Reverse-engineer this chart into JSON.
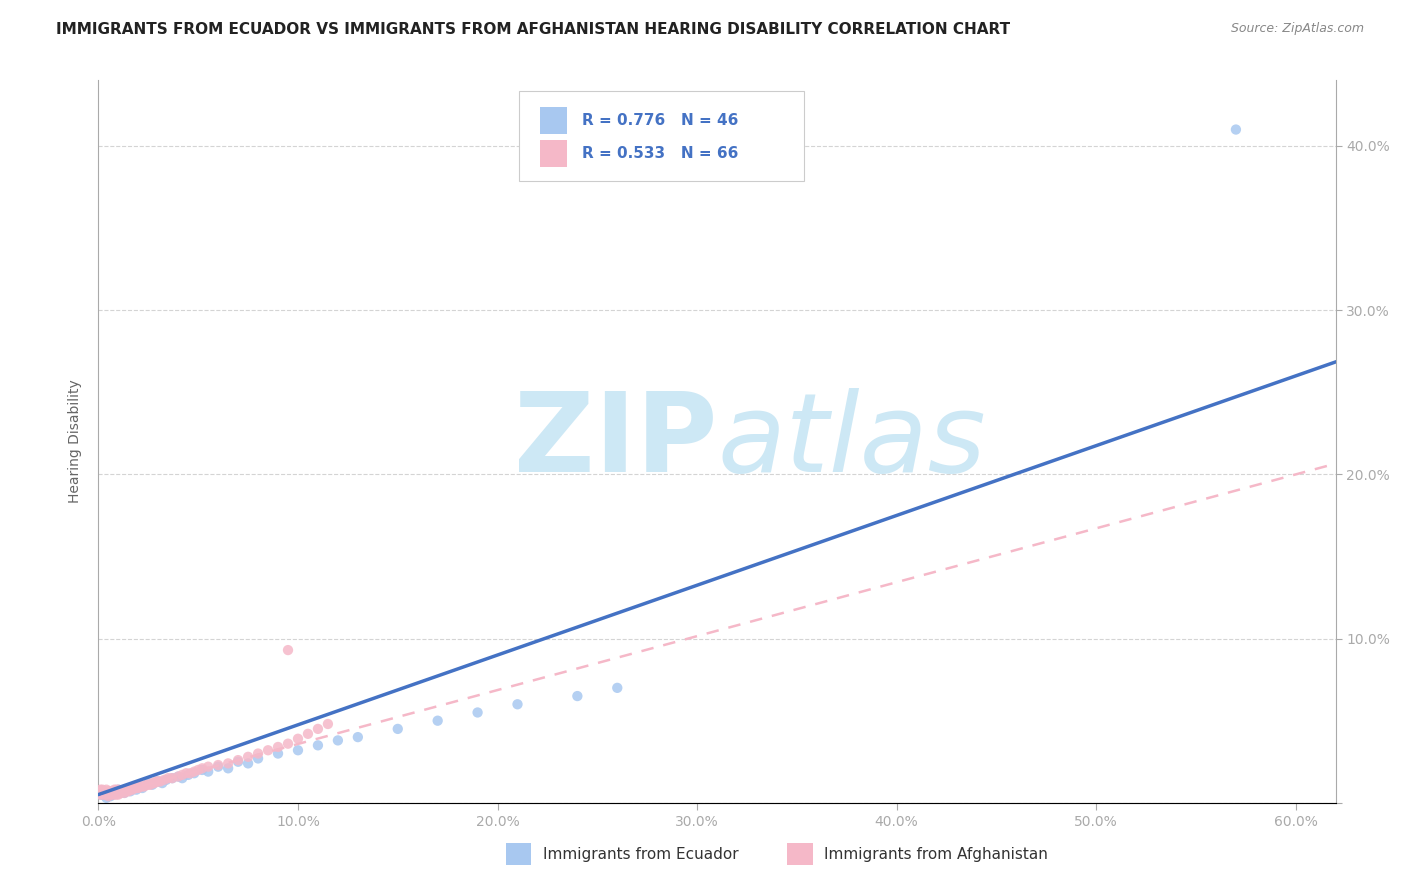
{
  "title": "IMMIGRANTS FROM ECUADOR VS IMMIGRANTS FROM AFGHANISTAN HEARING DISABILITY CORRELATION CHART",
  "source": "Source: ZipAtlas.com",
  "ylabel": "Hearing Disability",
  "xlim": [
    0.0,
    0.62
  ],
  "ylim": [
    0.0,
    0.44
  ],
  "xticks": [
    0.0,
    0.1,
    0.2,
    0.3,
    0.4,
    0.5,
    0.6
  ],
  "xticklabels": [
    "0.0%",
    "10.0%",
    "20.0%",
    "30.0%",
    "40.0%",
    "50.0%",
    "60.0%"
  ],
  "yticks": [
    0.0,
    0.1,
    0.2,
    0.3,
    0.4
  ],
  "yticklabels": [
    "",
    "10.0%",
    "20.0%",
    "30.0%",
    "40.0%"
  ],
  "ecuador_color": "#a8c8f0",
  "afghanistan_color": "#f5b8c8",
  "ecuador_line_color": "#4472c4",
  "afghanistan_line_color": "#f5b8c8",
  "R_ecuador": 0.776,
  "N_ecuador": 46,
  "R_afghanistan": 0.533,
  "N_afghanistan": 66,
  "watermark_zip": "ZIP",
  "watermark_atlas": "atlas",
  "legend_ecuador": "Immigrants from Ecuador",
  "legend_afghanistan": "Immigrants from Afghanistan",
  "ecuador_scatter_x": [
    0.001,
    0.002,
    0.003,
    0.004,
    0.005,
    0.006,
    0.007,
    0.008,
    0.01,
    0.012,
    0.013,
    0.015,
    0.016,
    0.018,
    0.019,
    0.02,
    0.022,
    0.025,
    0.027,
    0.03,
    0.032,
    0.034,
    0.037,
    0.04,
    0.042,
    0.045,
    0.048,
    0.052,
    0.055,
    0.06,
    0.065,
    0.07,
    0.075,
    0.08,
    0.09,
    0.1,
    0.11,
    0.12,
    0.13,
    0.15,
    0.17,
    0.19,
    0.21,
    0.24,
    0.26,
    0.57
  ],
  "ecuador_scatter_y": [
    0.005,
    0.005,
    0.005,
    0.003,
    0.004,
    0.004,
    0.005,
    0.006,
    0.008,
    0.007,
    0.006,
    0.008,
    0.007,
    0.009,
    0.008,
    0.01,
    0.009,
    0.012,
    0.011,
    0.013,
    0.012,
    0.014,
    0.015,
    0.016,
    0.015,
    0.017,
    0.018,
    0.02,
    0.019,
    0.022,
    0.021,
    0.025,
    0.024,
    0.027,
    0.03,
    0.032,
    0.035,
    0.038,
    0.04,
    0.045,
    0.05,
    0.055,
    0.06,
    0.065,
    0.07,
    0.41
  ],
  "afghanistan_scatter_x": [
    0.001,
    0.001,
    0.002,
    0.002,
    0.003,
    0.003,
    0.004,
    0.004,
    0.005,
    0.005,
    0.006,
    0.006,
    0.007,
    0.007,
    0.008,
    0.008,
    0.009,
    0.009,
    0.01,
    0.01,
    0.011,
    0.012,
    0.013,
    0.013,
    0.014,
    0.015,
    0.016,
    0.017,
    0.018,
    0.019,
    0.02,
    0.021,
    0.022,
    0.023,
    0.024,
    0.025,
    0.026,
    0.027,
    0.028,
    0.029,
    0.03,
    0.031,
    0.033,
    0.035,
    0.037,
    0.04,
    0.042,
    0.044,
    0.046,
    0.048,
    0.05,
    0.052,
    0.055,
    0.06,
    0.065,
    0.07,
    0.075,
    0.08,
    0.085,
    0.09,
    0.095,
    0.1,
    0.105,
    0.11,
    0.115,
    0.095
  ],
  "afghanistan_scatter_y": [
    0.005,
    0.008,
    0.005,
    0.008,
    0.005,
    0.007,
    0.005,
    0.008,
    0.004,
    0.007,
    0.005,
    0.007,
    0.005,
    0.007,
    0.005,
    0.008,
    0.005,
    0.008,
    0.005,
    0.008,
    0.006,
    0.007,
    0.006,
    0.008,
    0.007,
    0.007,
    0.008,
    0.008,
    0.009,
    0.009,
    0.009,
    0.01,
    0.01,
    0.01,
    0.011,
    0.011,
    0.011,
    0.012,
    0.012,
    0.013,
    0.013,
    0.013,
    0.014,
    0.015,
    0.015,
    0.016,
    0.017,
    0.018,
    0.018,
    0.019,
    0.02,
    0.021,
    0.022,
    0.023,
    0.024,
    0.026,
    0.028,
    0.03,
    0.032,
    0.034,
    0.036,
    0.039,
    0.042,
    0.045,
    0.048,
    0.093
  ],
  "title_fontsize": 11,
  "source_fontsize": 9,
  "axis_label_fontsize": 10,
  "tick_fontsize": 10,
  "legend_fontsize": 11,
  "watermark_fontsize_zip": 72,
  "watermark_fontsize_atlas": 72,
  "watermark_color": "#cde8f5",
  "background_color": "#ffffff",
  "grid_color": "#d0d0d0",
  "axis_color": "#aaaaaa",
  "tick_color": "#5b9bd5",
  "legend_text_color": "#4472c4"
}
